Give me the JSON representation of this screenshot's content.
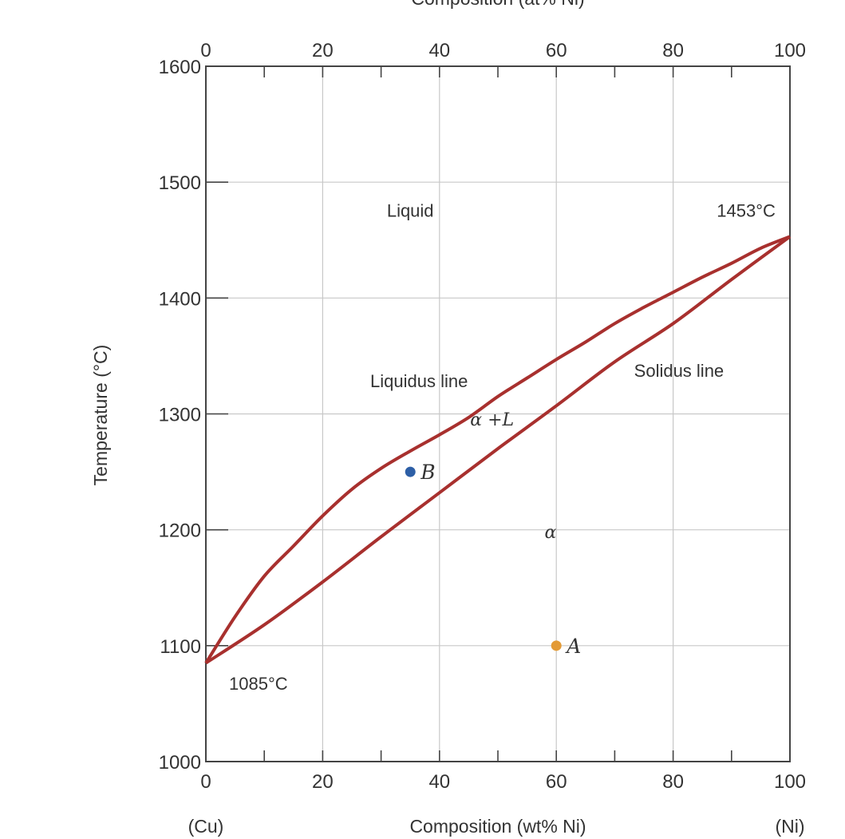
{
  "chart_data": {
    "type": "line",
    "title": "",
    "top_axis_title": "Composition (at% Ni)",
    "xlabel": "Composition (wt% Ni)",
    "ylabel": "Temperature (°C)",
    "x_left_end_label": "(Cu)",
    "x_right_end_label": "(Ni)",
    "xlim": [
      0,
      100
    ],
    "ylim": [
      1000,
      1600
    ],
    "x_ticks": [
      "0",
      "20",
      "40",
      "60",
      "80",
      "100"
    ],
    "top_ticks": [
      "0",
      "20",
      "40",
      "60",
      "80",
      "100"
    ],
    "y_ticks": [
      "1000",
      "1100",
      "1200",
      "1300",
      "1400",
      "1500",
      "1600"
    ],
    "grid": true,
    "series": [
      {
        "name": "Liquidus line",
        "color": "#a8302e",
        "x": [
          0,
          5,
          10,
          15,
          20,
          25,
          30,
          35,
          40,
          45,
          50,
          55,
          60,
          65,
          70,
          75,
          80,
          85,
          90,
          95,
          100
        ],
        "y": [
          1085,
          1125,
          1160,
          1186,
          1212,
          1235,
          1253,
          1268,
          1282,
          1297,
          1315,
          1331,
          1347,
          1362,
          1378,
          1392,
          1405,
          1418,
          1430,
          1443,
          1453
        ]
      },
      {
        "name": "Solidus line",
        "color": "#a8302e",
        "x": [
          0,
          10,
          20,
          30,
          40,
          50,
          60,
          70,
          80,
          90,
          100
        ],
        "y": [
          1085,
          1118,
          1155,
          1194,
          1232,
          1270,
          1307,
          1345,
          1378,
          1416,
          1453
        ]
      }
    ],
    "points": [
      {
        "label": "A",
        "x": 60,
        "y": 1100,
        "color": "#e39a35"
      },
      {
        "label": "B",
        "x": 35,
        "y": 1250,
        "color": "#2d5fa6"
      }
    ],
    "annotations": [
      {
        "text": "Liquid",
        "x": 35,
        "y": 1470,
        "style": "sans"
      },
      {
        "text": "1453°C",
        "x": 92.5,
        "y": 1470,
        "style": "sans"
      },
      {
        "text": "Liquidus line",
        "x": 36.5,
        "y": 1323,
        "style": "sans"
      },
      {
        "text": "Solidus line",
        "x": 81,
        "y": 1332,
        "style": "sans"
      },
      {
        "text": "α +L",
        "x": 49,
        "y": 1290,
        "style": "serif"
      },
      {
        "text": "α",
        "x": 59,
        "y": 1193,
        "style": "serif"
      },
      {
        "text": "1085°C",
        "x": 9,
        "y": 1062,
        "style": "sans"
      }
    ]
  }
}
